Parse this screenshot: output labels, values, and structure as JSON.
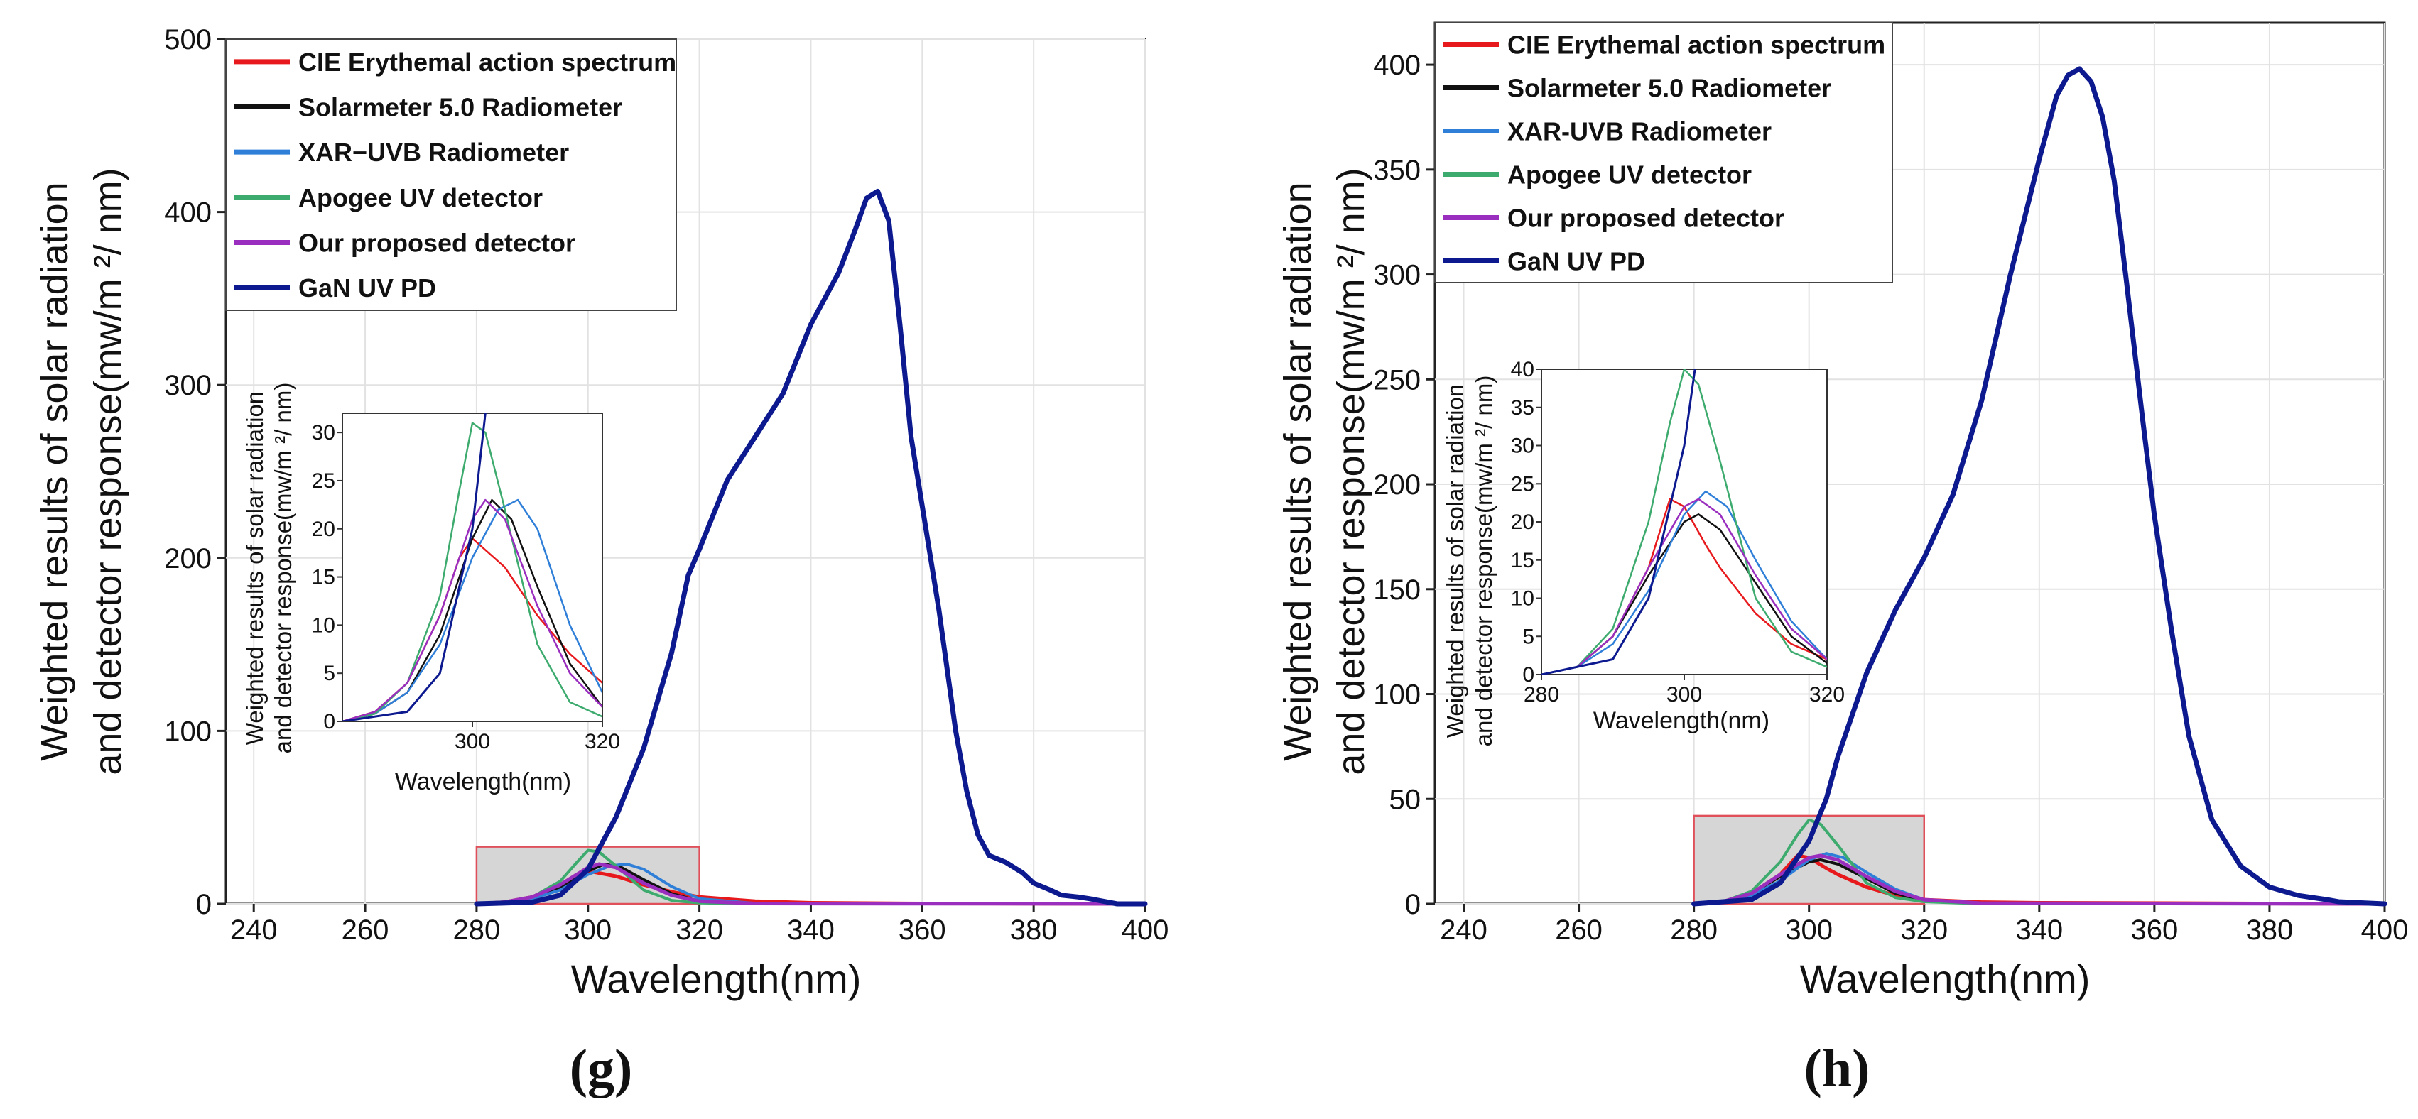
{
  "chart_data": [
    {
      "panel_label": "(g)",
      "type": "line",
      "xlabel": "Wavelength(nm)",
      "ylabel": [
        "Weighted results of solar radiation",
        "and detector response(mw/m ²/ nm)"
      ],
      "xlim": [
        235,
        400
      ],
      "ylim": [
        0,
        500
      ],
      "xticks": [
        240,
        260,
        280,
        300,
        320,
        340,
        360,
        380,
        400
      ],
      "yticks": [
        0,
        100,
        200,
        300,
        400,
        500
      ],
      "legend_position": "top-left",
      "highlight_box": {
        "x": [
          280,
          320
        ],
        "y": [
          0,
          33
        ]
      },
      "series": [
        {
          "name": "CIE Erythemal action spectrum",
          "color": "#e8191c",
          "width": 5,
          "x": [
            280,
            285,
            290,
            295,
            298,
            300,
            305,
            310,
            315,
            320,
            330,
            340,
            360,
            400
          ],
          "y": [
            0,
            1,
            4,
            11,
            17,
            19,
            16,
            11,
            7,
            4,
            1.5,
            0.6,
            0.2,
            0
          ]
        },
        {
          "name": "Solarmeter 5.0 Radiometer",
          "color": "#111111",
          "width": 4,
          "x": [
            280,
            285,
            290,
            295,
            300,
            303,
            306,
            310,
            315,
            320,
            330,
            400
          ],
          "y": [
            0,
            0.8,
            3,
            9,
            19,
            23,
            21,
            14,
            6,
            1.5,
            0.2,
            0
          ]
        },
        {
          "name": "XAR−UVB Radiometer",
          "color": "#2f7fd8",
          "width": 4,
          "x": [
            280,
            285,
            290,
            295,
            300,
            304,
            307,
            310,
            315,
            320,
            330,
            400
          ],
          "y": [
            0,
            0.8,
            3,
            8,
            17,
            22,
            23,
            20,
            10,
            3,
            0.3,
            0
          ]
        },
        {
          "name": "Apogee UV detector",
          "color": "#3daa6e",
          "width": 4,
          "x": [
            280,
            285,
            290,
            295,
            298,
            300,
            302,
            305,
            310,
            315,
            320,
            330,
            400
          ],
          "y": [
            0,
            0.8,
            4,
            13,
            24,
            31,
            30,
            22,
            8,
            2,
            0.5,
            0,
            0
          ]
        },
        {
          "name": "Our proposed detector",
          "color": "#9a2fbf",
          "width": 5,
          "x": [
            280,
            285,
            290,
            295,
            300,
            302,
            305,
            310,
            315,
            320,
            330,
            400
          ],
          "y": [
            0,
            1,
            4,
            11,
            21,
            23,
            21,
            12,
            5,
            1.5,
            0.2,
            0
          ]
        },
        {
          "name": "GaN UV PD",
          "color": "#0d1a8f",
          "width": 7,
          "x": [
            280,
            290,
            295,
            300,
            302,
            305,
            310,
            315,
            318,
            320,
            325,
            330,
            335,
            340,
            345,
            348,
            350,
            352,
            354,
            356,
            358,
            360,
            363,
            366,
            368,
            370,
            372,
            375,
            378,
            380,
            383,
            385,
            388,
            390,
            395,
            400
          ],
          "y": [
            0,
            1,
            5,
            20,
            32,
            50,
            90,
            145,
            190,
            205,
            245,
            270,
            295,
            335,
            365,
            390,
            408,
            412,
            395,
            335,
            270,
            230,
            170,
            100,
            65,
            40,
            28,
            24,
            18,
            12,
            8,
            5,
            4,
            3,
            0,
            0
          ]
        }
      ],
      "inset": {
        "xlabel": "Wavelength(nm)",
        "ylabel": [
          "Weighted results of solar radiation",
          "and detector response(mw/m ²/ nm)"
        ],
        "xlim": [
          280,
          320
        ],
        "ylim": [
          0,
          32
        ],
        "xticks": [
          300,
          320
        ],
        "yticks": [
          0,
          5,
          10,
          15,
          20,
          25,
          30
        ]
      }
    },
    {
      "panel_label": "(h)",
      "type": "line",
      "xlabel": "Wavelength(nm)",
      "ylabel": [
        "Weighted results of solar radiation",
        "and detector response(mw/m ²/ nm)"
      ],
      "xlim": [
        235,
        400
      ],
      "ylim": [
        0,
        420
      ],
      "xticks": [
        240,
        260,
        280,
        300,
        320,
        340,
        360,
        380,
        400
      ],
      "yticks": [
        0,
        50,
        100,
        150,
        200,
        250,
        300,
        350,
        400
      ],
      "legend_position": "top-left",
      "highlight_box": {
        "x": [
          280,
          320
        ],
        "y": [
          0,
          42
        ]
      },
      "series": [
        {
          "name": "CIE Erythemal action spectrum",
          "color": "#e8191c",
          "width": 5,
          "x": [
            280,
            285,
            290,
            295,
            298,
            300,
            303,
            305,
            310,
            315,
            320,
            330,
            340,
            400
          ],
          "y": [
            0,
            1,
            5,
            14,
            23,
            22,
            17,
            14,
            8,
            4,
            2,
            0.8,
            0.5,
            0
          ]
        },
        {
          "name": "Solarmeter 5.0 Radiometer",
          "color": "#111111",
          "width": 4,
          "x": [
            280,
            285,
            290,
            295,
            300,
            302,
            305,
            310,
            315,
            320,
            330,
            400
          ],
          "y": [
            0,
            1,
            5,
            13,
            20,
            21,
            19,
            12,
            5,
            1.5,
            0.2,
            0
          ]
        },
        {
          "name": "XAR-UVB Radiometer",
          "color": "#2f7fd8",
          "width": 4,
          "x": [
            280,
            285,
            290,
            295,
            300,
            303,
            306,
            310,
            315,
            320,
            330,
            400
          ],
          "y": [
            0,
            1,
            4,
            11,
            21,
            24,
            22,
            15,
            7,
            2,
            0.2,
            0
          ]
        },
        {
          "name": "Apogee UV detector",
          "color": "#3daa6e",
          "width": 4,
          "x": [
            280,
            285,
            290,
            295,
            298,
            300,
            302,
            305,
            310,
            315,
            320,
            330,
            400
          ],
          "y": [
            0,
            1,
            6,
            20,
            33,
            40,
            38,
            28,
            10,
            3,
            1,
            0,
            0
          ]
        },
        {
          "name": "Our proposed detector",
          "color": "#9a2fbf",
          "width": 5,
          "x": [
            280,
            285,
            290,
            295,
            300,
            302,
            305,
            310,
            315,
            320,
            330,
            400
          ],
          "y": [
            0,
            1,
            5,
            14,
            22,
            23,
            21,
            13,
            6,
            2,
            0.3,
            0
          ]
        },
        {
          "name": "GaN UV PD",
          "color": "#0d1a8f",
          "width": 7,
          "x": [
            280,
            290,
            295,
            300,
            303,
            305,
            310,
            315,
            320,
            325,
            330,
            335,
            340,
            343,
            345,
            347,
            349,
            351,
            353,
            355,
            358,
            360,
            363,
            366,
            370,
            375,
            380,
            385,
            390,
            392,
            400
          ],
          "y": [
            0,
            2,
            10,
            30,
            50,
            70,
            110,
            140,
            165,
            195,
            240,
            300,
            355,
            385,
            395,
            398,
            392,
            375,
            345,
            300,
            230,
            185,
            130,
            80,
            40,
            18,
            8,
            4,
            2,
            1,
            0
          ]
        }
      ],
      "inset": {
        "xlabel": "Wavelength(nm)",
        "ylabel": [
          "Weighted results of solar radiation",
          "and detector response(mw/m ²/ nm)"
        ],
        "xlim": [
          280,
          320
        ],
        "ylim": [
          0,
          40
        ],
        "xticks": [
          280,
          300,
          320
        ],
        "yticks": [
          0,
          5,
          10,
          15,
          20,
          25,
          30,
          35,
          40
        ]
      }
    }
  ]
}
